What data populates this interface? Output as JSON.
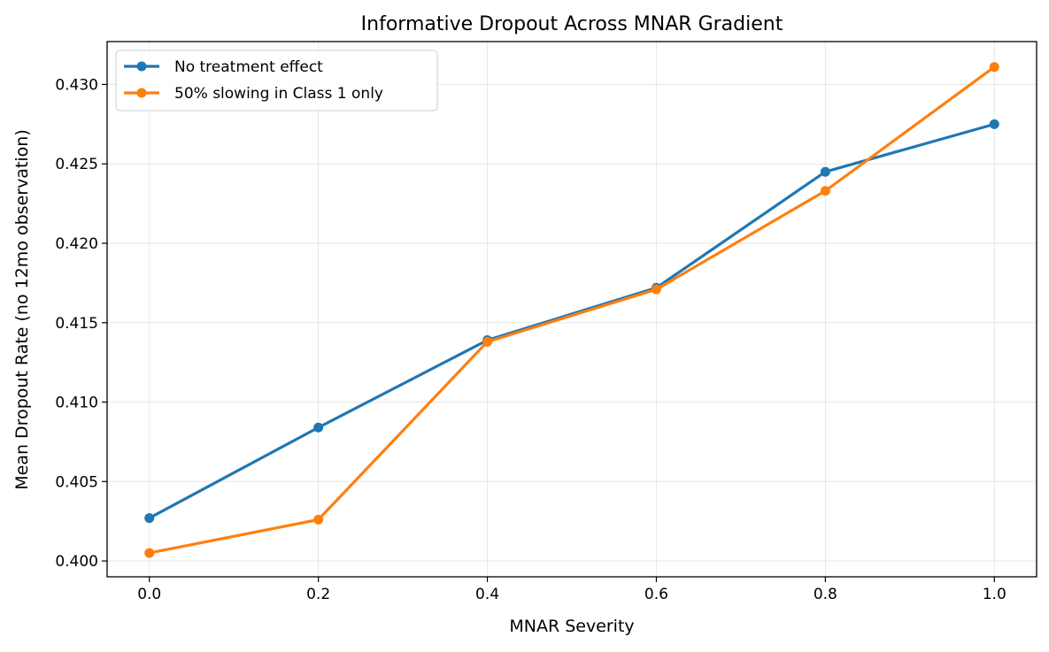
{
  "chart_data": {
    "type": "line",
    "title": "Informative Dropout Across MNAR Gradient",
    "xlabel": "MNAR Severity",
    "ylabel": "Mean Dropout Rate (no 12mo observation)",
    "x": [
      0.0,
      0.2,
      0.4,
      0.6,
      0.8,
      1.0
    ],
    "xlim": [
      -0.05,
      1.05
    ],
    "ylim": [
      0.399,
      0.4327
    ],
    "xticks": [
      "0.0",
      "0.2",
      "0.4",
      "0.6",
      "0.8",
      "1.0"
    ],
    "yticks": [
      "0.400",
      "0.405",
      "0.410",
      "0.415",
      "0.420",
      "0.425",
      "0.430"
    ],
    "grid": true,
    "legend_position": "upper-left",
    "series": [
      {
        "name": "No treatment effect",
        "color": "#1f77b4",
        "marker": "circle",
        "values": [
          0.4027,
          0.4084,
          0.4139,
          0.4172,
          0.4245,
          0.4275
        ]
      },
      {
        "name": "50% slowing in Class 1 only",
        "color": "#ff7f0e",
        "marker": "circle",
        "values": [
          0.4005,
          0.4026,
          0.4138,
          0.4171,
          0.4233,
          0.4311
        ]
      }
    ]
  }
}
